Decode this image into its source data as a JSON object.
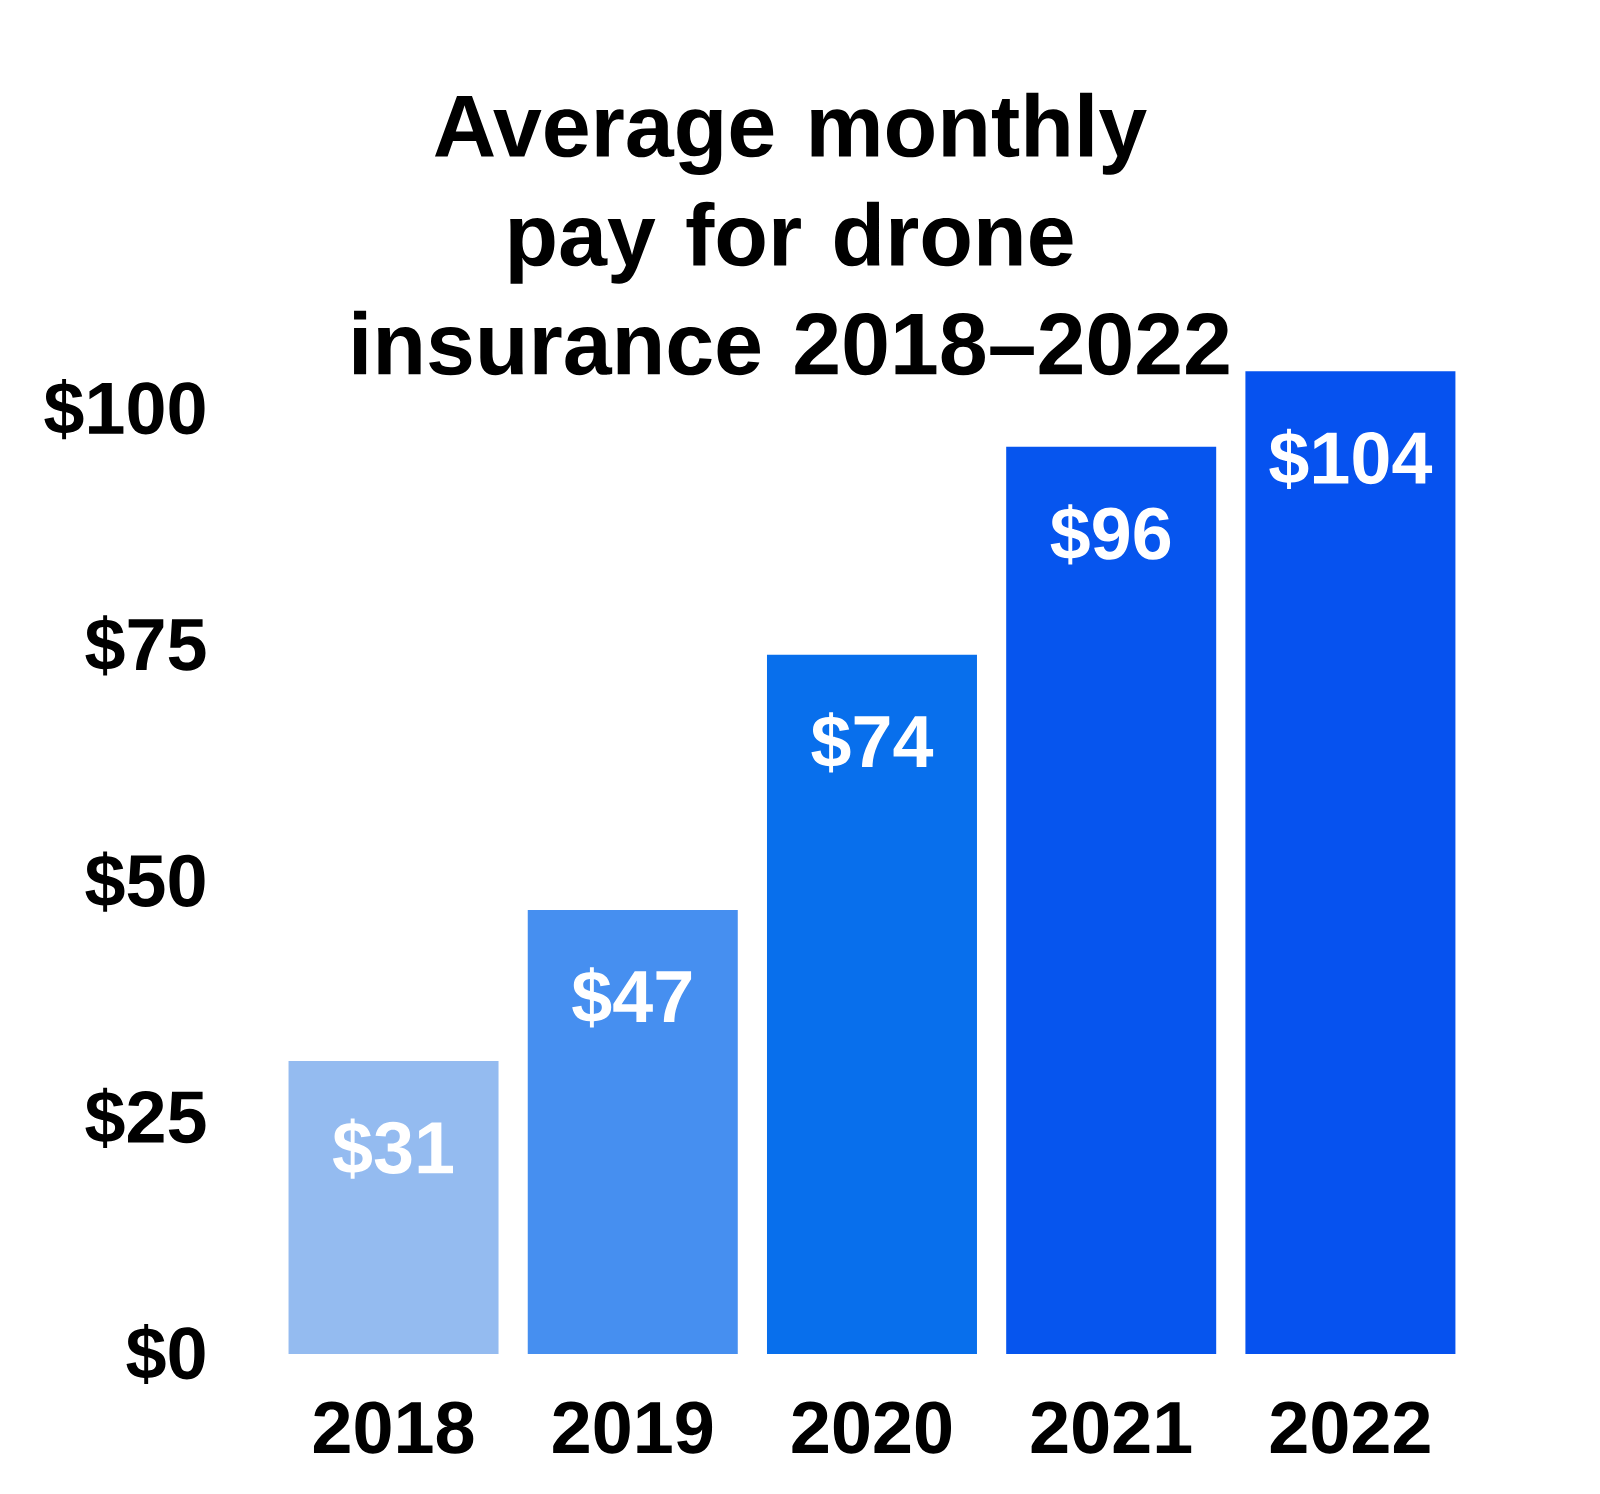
{
  "chart_data": {
    "type": "bar",
    "title": "Average monthly pay for drone insurance 2018–2022",
    "categories": [
      "2018",
      "2019",
      "2020",
      "2021",
      "2022"
    ],
    "values": [
      31,
      47,
      74,
      96,
      104
    ],
    "colors": [
      "#94bbf0",
      "#468ff0",
      "#086fec",
      "#0655ee",
      "#0652ef"
    ],
    "value_labels": [
      "$31",
      "$47",
      "$74",
      "$96",
      "$104"
    ],
    "ylim": [
      0,
      105
    ],
    "yticks": [
      {
        "value": 0,
        "label": "$0"
      },
      {
        "value": 25,
        "label": "$25"
      },
      {
        "value": 50,
        "label": "$50"
      },
      {
        "value": 75,
        "label": "$75"
      },
      {
        "value": 100,
        "label": "$100"
      }
    ],
    "grid": false
  }
}
